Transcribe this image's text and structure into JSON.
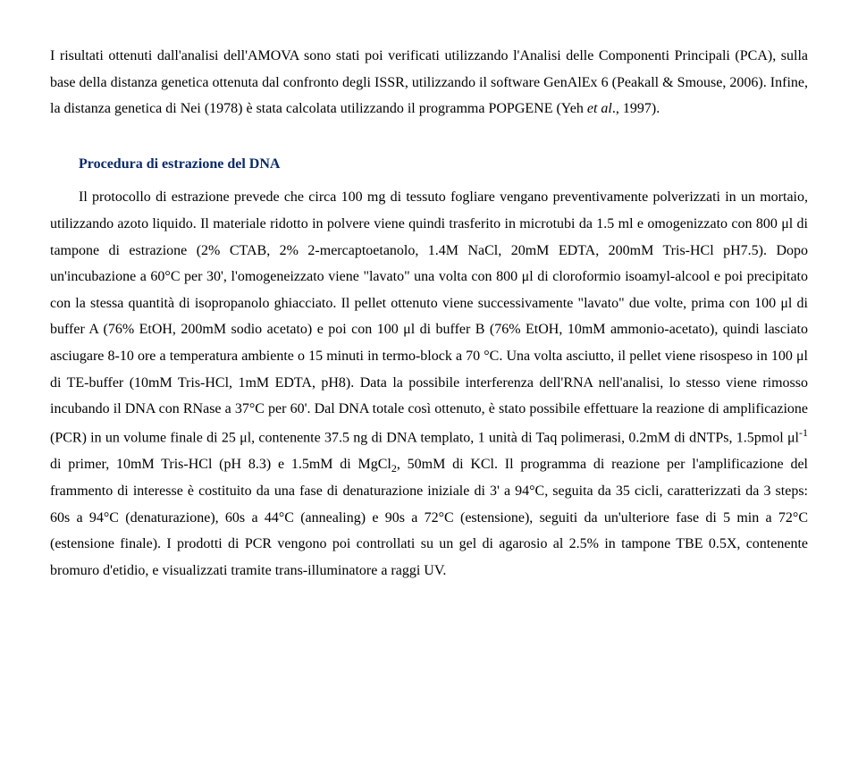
{
  "para1": {
    "t1": "I risultati ottenuti dall'analisi dell'AMOVA sono stati poi verificati utilizzando l'Analisi delle Componenti Principali (PCA), sulla base della distanza genetica ottenuta dal confronto degli ISSR, utilizzando il software GenAlEx 6 (Peakall & Smouse, 2006). Infine, la distanza genetica di Nei (1978) è stata calcolata utilizzando il programma POPGENE (Yeh ",
    "it": "et al",
    "t2": "., 1997)."
  },
  "heading1": "Procedura di estrazione del DNA",
  "para2": {
    "t1": "Il protocollo di estrazione prevede che circa 100 mg di tessuto fogliare vengano preventivamente polverizzati in un mortaio, utilizzando azoto liquido. Il materiale ridotto in polvere viene quindi trasferito in microtubi da 1.5 ml e omogenizzato con 800 μl di tampone di estrazione (2% CTAB, 2% 2-mercaptoetanolo, 1.4M NaCl, 20mM EDTA, 200mM Tris-HCl pH7.5). Dopo un'incubazione a 60°C per 30', l'omogeneizzato viene \"lavato\" una volta con 800 μl di cloroformio isoamyl-alcool e poi precipitato con la stessa quantità di isopropanolo ghiacciato. Il pellet ottenuto viene successivamente \"lavato\" due volte, prima con 100 μl di buffer A (76% EtOH, 200mM sodio acetato) e poi con 100 μl di buffer B (76% EtOH, 10mM ammonio-acetato), quindi lasciato asciugare 8-10 ore a temperatura ambiente o 15 minuti in termo-block a 70 °C. Una volta asciutto, il pellet viene risospeso in 100 μl di TE-buffer (10mM Tris-HCl, 1mM EDTA, pH8). Data la possibile interferenza dell'RNA nell'analisi, lo stesso viene rimosso incubando il DNA con RNase a 37°C per 60'. Dal DNA totale così ottenuto, è stato possibile effettuare la reazione di amplificazione (PCR) in un volume finale di 25 μl, contenente 37.5 ng di DNA templato, 1 unità di Taq polimerasi, 0.2mM di dNTPs, 1.5pmol μl",
    "sup": "-1",
    "t2": " di primer, 10mM Tris-HCl (pH 8.3) e 1.5mM di MgCl",
    "sub": "2",
    "t3": ", 50mM di KCl. Il programma di reazione per l'amplificazione del frammento di interesse è costituito da una fase di denaturazione iniziale di 3' a 94°C, seguita da 35 cicli, caratterizzati da 3 steps: 60s a 94°C (denaturazione), 60s a 44°C (annealing) e 90s a 72°C (estensione), seguiti da un'ulteriore fase di 5 min a 72°C (estensione finale). I prodotti di PCR vengono poi controllati su un gel di agarosio al 2.5% in tampone TBE 0.5X, contenente bromuro d'etidio, e visualizzati tramite trans-illuminatore a raggi UV."
  }
}
